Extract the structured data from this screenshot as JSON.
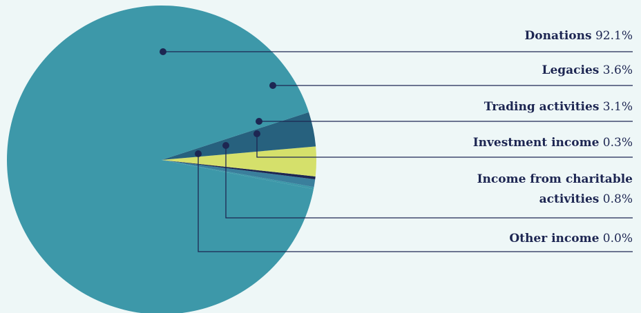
{
  "chart_data": {
    "type": "pie",
    "title": "",
    "slices": [
      {
        "label": "Donations",
        "value": 92.1,
        "display": "92.1%",
        "color": "#3d98a9"
      },
      {
        "label": "Legacies",
        "value": 3.6,
        "display": "3.6%",
        "color": "#27617e"
      },
      {
        "label": "Trading activities",
        "value": 3.1,
        "display": "3.1%",
        "color": "#d5e06b"
      },
      {
        "label": "Investment income",
        "value": 0.3,
        "display": "0.3%",
        "color": "#1d2652"
      },
      {
        "label": "Income from charitable activities",
        "value": 0.8,
        "display": "0.8%",
        "color": "#3a7f9c"
      },
      {
        "label": "Other income",
        "value": 0.0,
        "display": "0.0%",
        "color": "#3d98a9"
      }
    ],
    "legend": "right",
    "leader_color": "#1d2652"
  }
}
